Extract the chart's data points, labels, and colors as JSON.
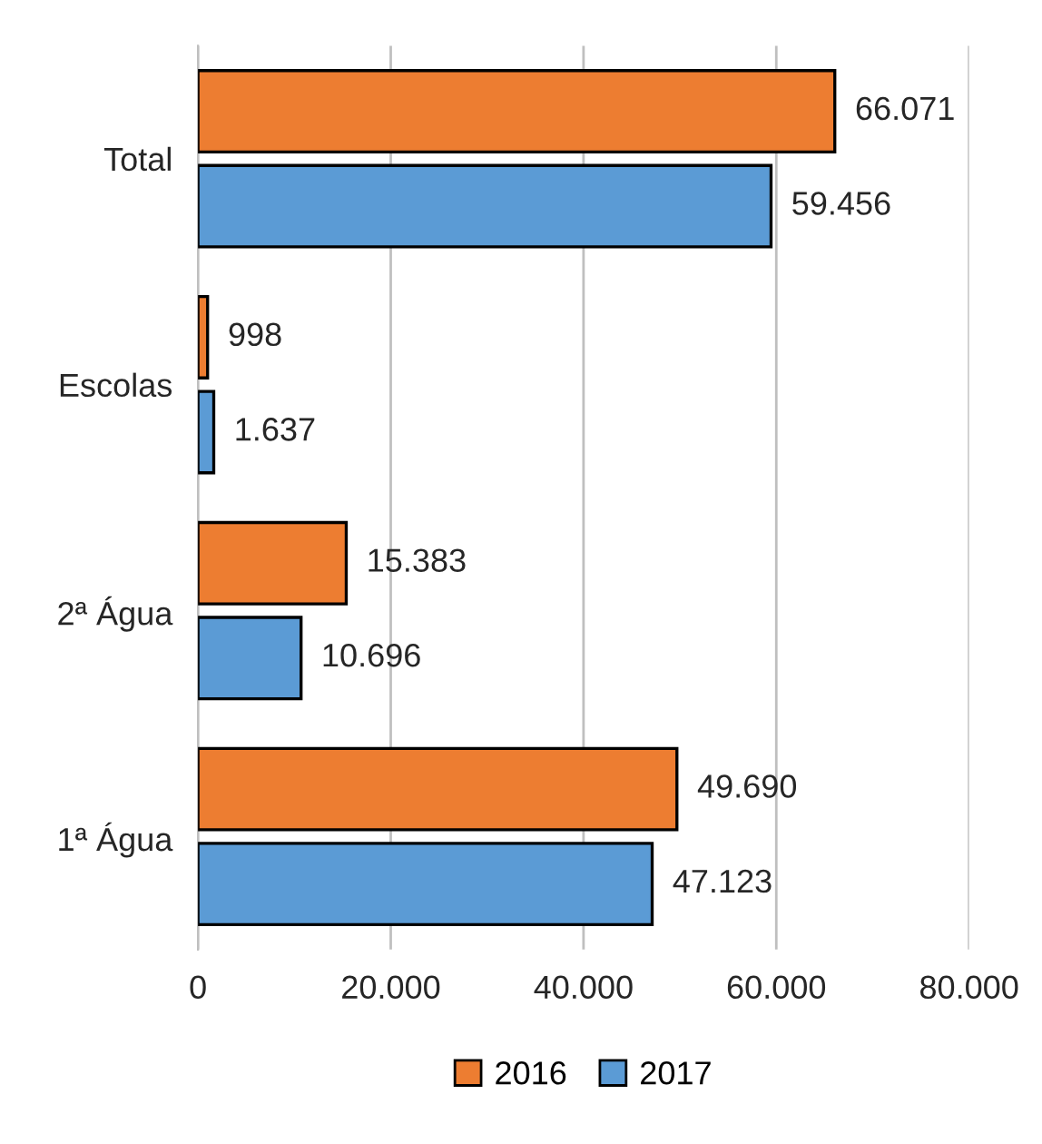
{
  "chart_data": {
    "type": "bar",
    "orientation": "horizontal",
    "categories": [
      "Total",
      "Escolas",
      "2ª Água",
      "1ª Água"
    ],
    "series": [
      {
        "name": "2016",
        "color": "#ed7d31",
        "values": [
          66071,
          998,
          15383,
          49690
        ],
        "value_labels": [
          "66.071",
          "998",
          "15.383",
          "49.690"
        ]
      },
      {
        "name": "2017",
        "color": "#5b9bd5",
        "values": [
          59456,
          1637,
          10696,
          47123
        ],
        "value_labels": [
          "59.456",
          "1.637",
          "10.696",
          "47.123"
        ]
      }
    ],
    "xlim": [
      0,
      80000
    ],
    "xticks": [
      {
        "value": 0,
        "label": "0"
      },
      {
        "value": 20000,
        "label": "20.000"
      },
      {
        "value": 40000,
        "label": "40.000"
      },
      {
        "value": 60000,
        "label": "60.000"
      },
      {
        "value": 80000,
        "label": "80.000"
      }
    ],
    "grid": "x",
    "legend": "bottom"
  }
}
